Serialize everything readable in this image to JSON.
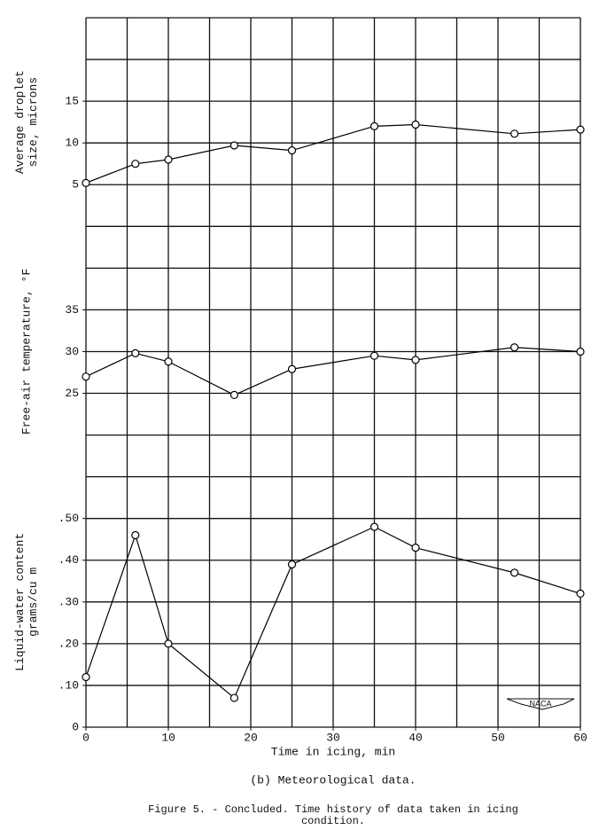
{
  "chart_data": [
    {
      "type": "line",
      "ylabel": [
        "Average droplet",
        "size, microns"
      ],
      "x": [
        0,
        6,
        10,
        18,
        25,
        35,
        40,
        52,
        60
      ],
      "values": [
        5.2,
        7.5,
        8,
        9.7,
        9.1,
        12,
        12.2,
        11.1,
        11.6
      ],
      "xlim": [
        0,
        60
      ],
      "ylim": [
        0,
        25
      ],
      "yticks": [
        5,
        10,
        15
      ],
      "color": "#000000"
    },
    {
      "type": "line",
      "ylabel": [
        "Free-air temperature, °F"
      ],
      "x": [
        0,
        6,
        10,
        18,
        25,
        35,
        40,
        52,
        60
      ],
      "values": [
        27,
        29.8,
        28.8,
        24.8,
        27.9,
        29.5,
        29,
        30.5,
        30
      ],
      "xlim": [
        0,
        60
      ],
      "ylim": [
        15,
        45
      ],
      "yticks": [
        25,
        30,
        35
      ],
      "color": "#000000"
    },
    {
      "type": "line",
      "ylabel": [
        "Liquid-water content",
        "grams/cu m"
      ],
      "xlabel": "Time in icing, min",
      "x": [
        0,
        6,
        10,
        18,
        25,
        35,
        40,
        52,
        60
      ],
      "values": [
        0.12,
        0.46,
        0.2,
        0.07,
        0.39,
        0.48,
        0.43,
        0.37,
        0.32
      ],
      "xlim": [
        0,
        60
      ],
      "ylim": [
        0,
        0.6
      ],
      "yticks": [
        0,
        {
          "value": 0.1,
          "label": ".10"
        },
        {
          "value": 0.2,
          "label": ".20"
        },
        {
          "value": 0.3,
          "label": ".30"
        },
        {
          "value": 0.4,
          "label": ".40"
        },
        {
          "value": 0.5,
          "label": ".50"
        }
      ],
      "xticks": [
        0,
        10,
        20,
        30,
        40,
        50,
        60
      ],
      "color": "#000000"
    }
  ],
  "logo": "NACA",
  "caption": "(b) Meteorological data.",
  "figure_caption": [
    "Figure 5. - Concluded.  Time history of data taken in icing",
    "condition."
  ]
}
